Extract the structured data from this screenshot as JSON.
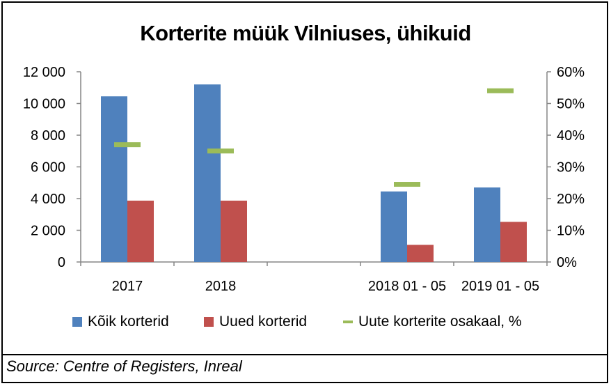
{
  "chart_data": {
    "type": "bar",
    "title": "Korterite müük Vilniuses, ühikuid",
    "categories": [
      "2017",
      "2018",
      "",
      "2018 01 - 05",
      "2019 01 - 05"
    ],
    "series": [
      {
        "name": "Kõik korterid",
        "axis": "left",
        "kind": "bar",
        "color": "#4F81BD",
        "values": [
          10450,
          11200,
          null,
          4450,
          4700
        ]
      },
      {
        "name": "Uued korterid",
        "axis": "left",
        "kind": "bar",
        "color": "#C0504D",
        "values": [
          3870,
          3870,
          null,
          1080,
          2530
        ]
      },
      {
        "name": "Uute korterite osakaal, %",
        "axis": "right",
        "kind": "marker",
        "color": "#9BBB59",
        "values": [
          37,
          35,
          null,
          24.5,
          54
        ]
      }
    ],
    "y_left": {
      "min": 0,
      "max": 12000,
      "ticks": [
        "0",
        "2 000",
        "4 000",
        "6 000",
        "8 000",
        "10 000",
        "12 000"
      ]
    },
    "y_right": {
      "min": 0,
      "max": 60,
      "ticks": [
        "0%",
        "10%",
        "20%",
        "30%",
        "40%",
        "50%",
        "60%"
      ]
    },
    "grid": false,
    "legend_position": "bottom"
  },
  "source": "Source: Centre of Registers, Inreal"
}
